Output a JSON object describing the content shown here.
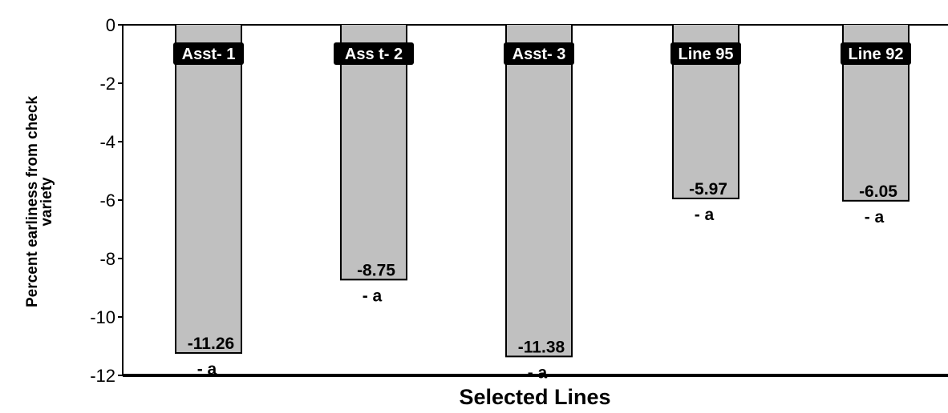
{
  "chart_data": {
    "type": "bar",
    "title": "",
    "xlabel": "Selected Lines",
    "ylabel": "Percent earliness from check variety",
    "ylim": [
      -12,
      0
    ],
    "yticks": [
      0,
      -2,
      -4,
      -6,
      -8,
      -10,
      -12
    ],
    "ytick_labels": [
      "0",
      "-2",
      "-4",
      "-6",
      "-8",
      "-10",
      "-12"
    ],
    "grid": false,
    "legend": "none",
    "categories": [
      "Asst- 1",
      "Ass t- 2",
      "Asst- 3",
      "Line 95",
      "Line 92"
    ],
    "values": [
      -11.26,
      -8.75,
      -11.38,
      -5.97,
      -6.05
    ],
    "value_labels": [
      "-11.26",
      "-8.75",
      "-11.38",
      "-5.97",
      "-6.05"
    ],
    "significance_labels": [
      "- a",
      "- a",
      "- a",
      "- a",
      "- a"
    ],
    "colors": {
      "bar_fill": "#c0c0c0",
      "bar_outline": "#000000",
      "label_bg": "#000000",
      "label_text": "#ffffff"
    }
  }
}
